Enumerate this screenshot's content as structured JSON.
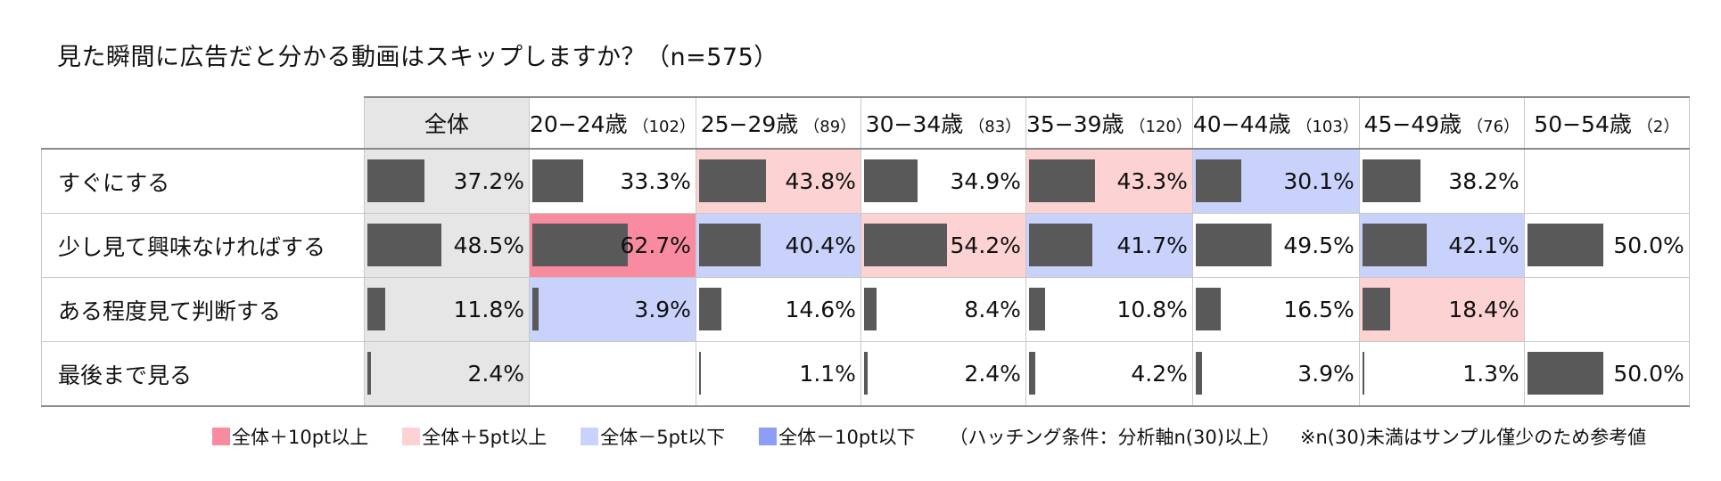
{
  "title": "見た瞬間に広告だと分かる動画はスキップしますか？（n=575）",
  "chart_data": {
    "type": "table",
    "columns": [
      {
        "label": "全体",
        "n": ""
      },
      {
        "label": "20−24歳",
        "n": "（102）"
      },
      {
        "label": "25−29歳",
        "n": "（89）"
      },
      {
        "label": "30−34歳",
        "n": "（83）"
      },
      {
        "label": "35−39歳",
        "n": "（120）"
      },
      {
        "label": "40−44歳",
        "n": "（103）"
      },
      {
        "label": "45−49歳",
        "n": "（76）"
      },
      {
        "label": "50−54歳",
        "n": "（2）"
      }
    ],
    "rows": [
      {
        "label": "すぐにする",
        "values": [
          "37.2%",
          "33.3%",
          "43.8%",
          "34.9%",
          "43.3%",
          "30.1%",
          "38.2%",
          ""
        ],
        "numbers": [
          37.2,
          33.3,
          43.8,
          34.9,
          43.3,
          30.1,
          38.2,
          0
        ],
        "highlight": [
          "",
          "",
          "plus5",
          "",
          "plus5",
          "minus5",
          "",
          ""
        ]
      },
      {
        "label": "少し見て興味なければする",
        "values": [
          "48.5%",
          "62.7%",
          "40.4%",
          "54.2%",
          "41.7%",
          "49.5%",
          "42.1%",
          "50.0%"
        ],
        "numbers": [
          48.5,
          62.7,
          40.4,
          54.2,
          41.7,
          49.5,
          42.1,
          50.0
        ],
        "highlight": [
          "",
          "plus10",
          "minus5",
          "plus5",
          "minus5",
          "",
          "minus5",
          ""
        ]
      },
      {
        "label": "ある程度見て判断する",
        "values": [
          "11.8%",
          "3.9%",
          "14.6%",
          "8.4%",
          "10.8%",
          "16.5%",
          "18.4%",
          ""
        ],
        "numbers": [
          11.8,
          3.9,
          14.6,
          8.4,
          10.8,
          16.5,
          18.4,
          0
        ],
        "highlight": [
          "",
          "minus5",
          "",
          "",
          "",
          "",
          "plus5",
          ""
        ]
      },
      {
        "label": "最後まで見る",
        "values": [
          "2.4%",
          "",
          "1.1%",
          "2.4%",
          "4.2%",
          "3.9%",
          "1.3%",
          "50.0%"
        ],
        "numbers": [
          2.4,
          0,
          1.1,
          2.4,
          4.2,
          3.9,
          1.3,
          50.0
        ],
        "highlight": [
          "",
          "",
          "",
          "",
          "",
          "",
          "",
          ""
        ]
      }
    ]
  },
  "legend": {
    "items": [
      {
        "key": "plus10",
        "label": "全体＋10pt以上",
        "color": "#f98ba0"
      },
      {
        "key": "plus5",
        "label": "全体＋5pt以上",
        "color": "#fcd2d2"
      },
      {
        "key": "minus5",
        "label": "全体－5pt以下",
        "color": "#c8d2fb"
      },
      {
        "key": "minus10",
        "label": "全体－10pt以下",
        "color": "#8e9ef7"
      }
    ],
    "condition": "（ハッチング条件：分析軸n(30)以上）",
    "note": "※n(30)未満はサンプル僅少のため参考値"
  },
  "colors": {
    "bar": "#595959",
    "total_bg": "#e6e6e6"
  }
}
